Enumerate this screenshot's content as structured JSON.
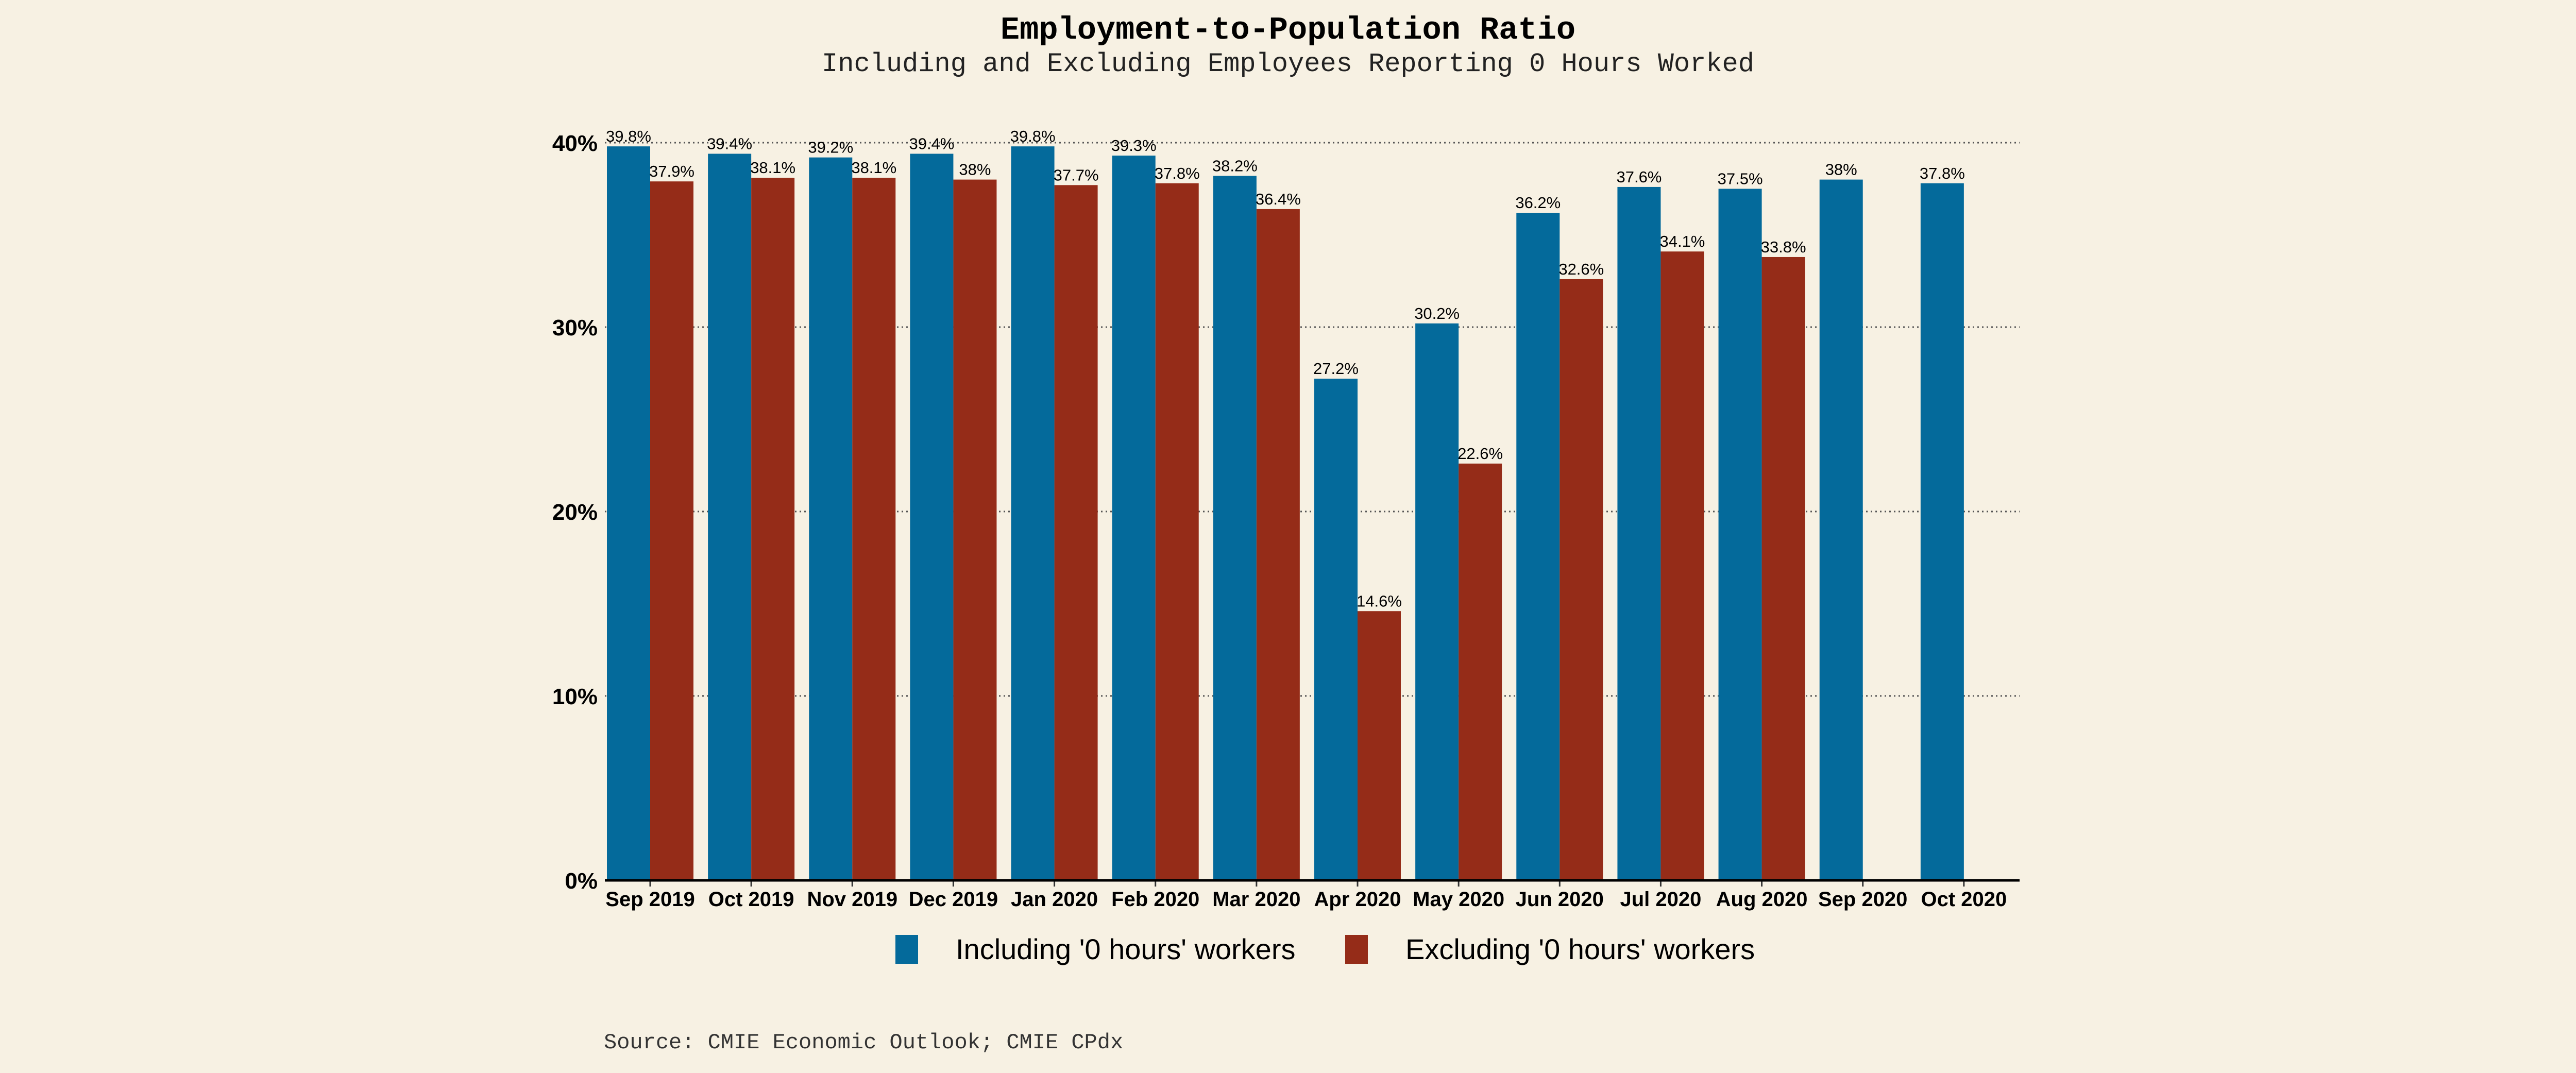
{
  "chart_data": {
    "type": "bar",
    "title": "Employment-to-Population Ratio",
    "subtitle": "Including and Excluding Employees Reporting 0 Hours Worked",
    "xlabel": "",
    "ylabel": "",
    "categories": [
      "Sep 2019",
      "Oct 2019",
      "Nov 2019",
      "Dec 2019",
      "Jan 2020",
      "Feb 2020",
      "Mar 2020",
      "Apr 2020",
      "May 2020",
      "Jun 2020",
      "Jul 2020",
      "Aug 2020",
      "Sep 2020",
      "Oct 2020"
    ],
    "series": [
      {
        "name": "Including '0 hours' workers",
        "color": "#046a9b",
        "values": [
          39.8,
          39.4,
          39.2,
          39.4,
          39.8,
          39.3,
          38.2,
          27.2,
          30.2,
          36.2,
          37.6,
          37.5,
          38,
          37.8
        ],
        "labels": [
          "39.8%",
          "39.4%",
          "39.2%",
          "39.4%",
          "39.8%",
          "39.3%",
          "38.2%",
          "27.2%",
          "30.2%",
          "36.2%",
          "37.6%",
          "37.5%",
          "38%",
          "37.8%"
        ]
      },
      {
        "name": "Excluding '0 hours' workers",
        "color": "#952c18",
        "values": [
          37.9,
          38.1,
          38.1,
          38,
          37.7,
          37.8,
          36.4,
          14.6,
          22.6,
          32.6,
          34.1,
          33.8,
          null,
          null
        ],
        "labels": [
          "37.9%",
          "38.1%",
          "38.1%",
          "38%",
          "37.7%",
          "37.8%",
          "36.4%",
          "14.6%",
          "22.6%",
          "32.6%",
          "34.1%",
          "33.8%",
          null,
          null
        ]
      }
    ],
    "ylim": [
      0,
      40
    ],
    "yticks": [
      0,
      10,
      20,
      30,
      40
    ],
    "ytick_labels": [
      "0%",
      "10%",
      "20%",
      "30%",
      "40%"
    ],
    "grid": "horizontal dotted",
    "legend": "bottom",
    "source": "Source: CMIE Economic Outlook; CMIE CPdx"
  }
}
